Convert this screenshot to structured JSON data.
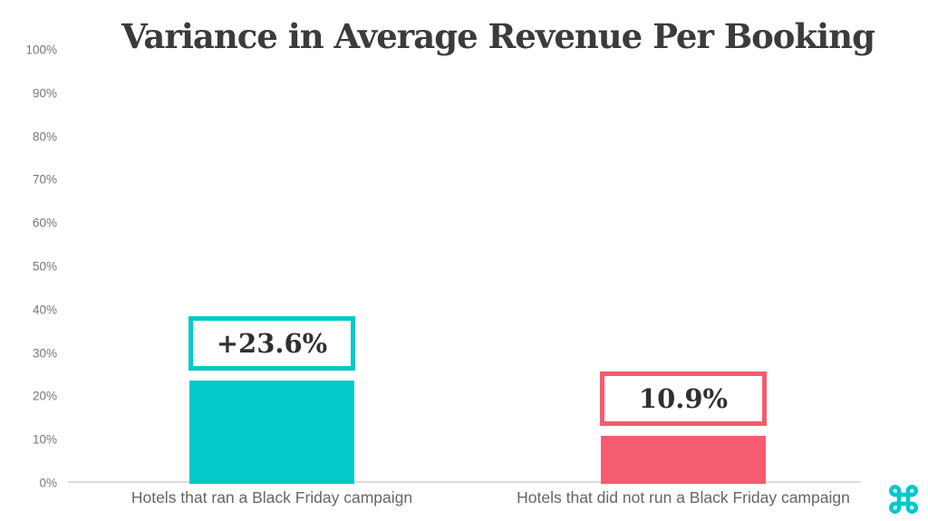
{
  "chart_data": {
    "type": "bar",
    "title": "Variance in Average Revenue Per Booking",
    "categories": [
      "Hotels that ran a Black Friday campaign",
      "Hotels that did not run a Black Friday campaign"
    ],
    "values": [
      23.6,
      10.9
    ],
    "data_labels": [
      "+23.6%",
      "10.9%"
    ],
    "bar_colors": [
      "#04c9c9",
      "#f65c6f"
    ],
    "y_ticks": [
      "0%",
      "10%",
      "20%",
      "30%",
      "40%",
      "50%",
      "60%",
      "70%",
      "80%",
      "90%",
      "100%"
    ],
    "ylim": [
      0,
      100
    ],
    "xlabel": "",
    "ylabel": "",
    "grid": false,
    "legend": false
  },
  "branding": {
    "logo_icon": "command-symbol-icon",
    "logo_color": "#04c9c9"
  },
  "style_colors": {
    "title_text": "#3b3b3b",
    "value_label_text": "#303030",
    "tick_text": "#767676",
    "category_text": "#666666",
    "axis_line": "#dcdcdc",
    "background": "#ffffff"
  }
}
